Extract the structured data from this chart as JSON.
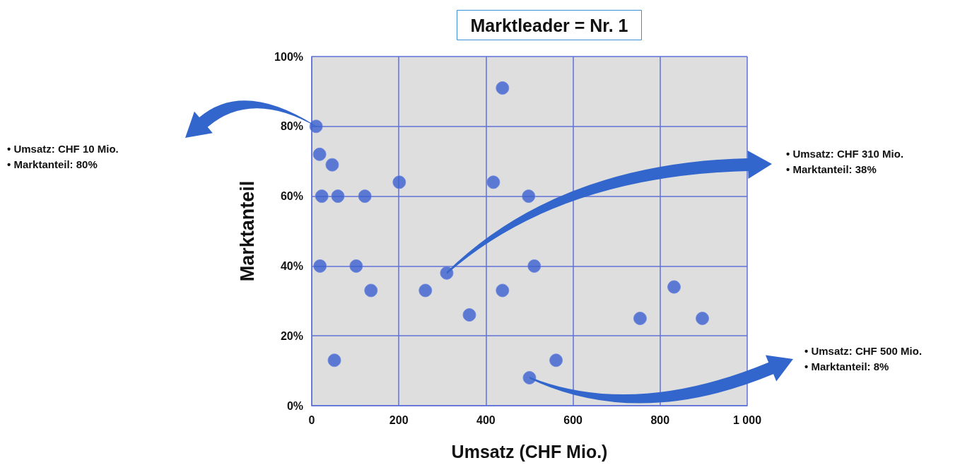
{
  "chart_data": {
    "type": "scatter",
    "title": "Marktleader = Nr. 1",
    "xlabel": "Umsatz (CHF Mio.)",
    "ylabel": "Marktanteil",
    "x": [
      10,
      18,
      47,
      23,
      60,
      122,
      201,
      417,
      498,
      19,
      102,
      136,
      261,
      310,
      362,
      438,
      438,
      511,
      500,
      561,
      52,
      754,
      832,
      897
    ],
    "values": [
      80,
      72,
      69,
      60,
      60,
      60,
      64,
      64,
      60,
      40,
      40,
      33,
      33,
      38,
      26,
      91,
      33,
      40,
      8,
      13,
      13,
      25,
      34,
      25
    ],
    "color": "#3a5fcf",
    "marker": "circle",
    "grid": true,
    "xlim": [
      0,
      1000
    ],
    "xticks": [
      0,
      200,
      400,
      600,
      800,
      {
        "value": 1000,
        "label": "1 000"
      }
    ],
    "ylim": [
      0,
      100
    ],
    "yticks": [
      {
        "value": 0,
        "label": "0%"
      },
      {
        "value": 20,
        "label": "20%"
      },
      {
        "value": 40,
        "label": "40%"
      },
      {
        "value": 60,
        "label": "60%"
      },
      {
        "value": 80,
        "label": "80%"
      },
      {
        "value": 100,
        "label": "100%"
      }
    ],
    "annotations": [
      "• Umsatz: CHF 10 Mio.\n• Marktanteil: 80%",
      "• Umsatz: CHF 310 Mio.\n• Marktanteil: 38%",
      "• Umsatz: CHF 500 Mio.\n• Marktanteil: 8%"
    ]
  }
}
